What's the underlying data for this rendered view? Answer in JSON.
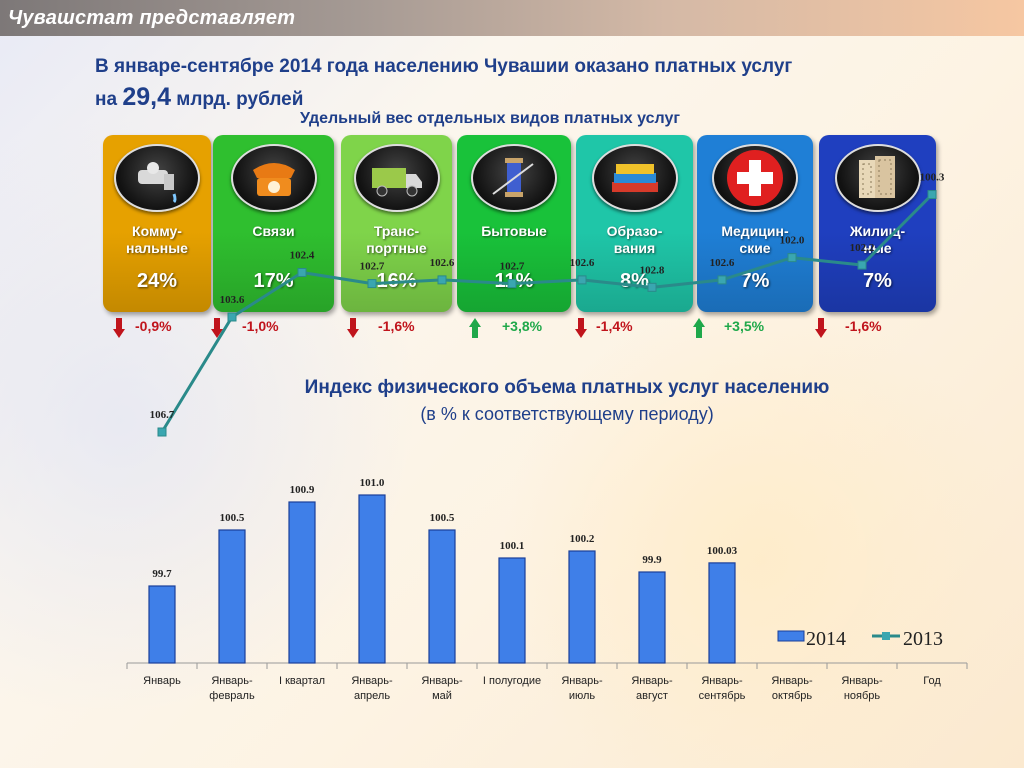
{
  "header": {
    "title": "Чувашстат представляет"
  },
  "headline": {
    "line1": "В  январе-сентябре 2014 года населению Чувашии  оказано платных услуг",
    "line2_prefix": "на ",
    "amount": "29,4",
    "line2_suffix": " млрд. рублей"
  },
  "subtitle": "Удельный вес отдельных видов платных услуг",
  "tiles": [
    {
      "label_1": "Комму-",
      "label_2": "нальные",
      "value": "24%",
      "change": "-0,9%",
      "direction": "down",
      "color": "#e6a100",
      "icon": "faucet-icon"
    },
    {
      "label_1": "Связи",
      "label_2": "",
      "value": "17%",
      "change": "-1,0%",
      "direction": "down",
      "color": "#2fbf2f",
      "icon": "telephone-icon"
    },
    {
      "label_1": "Транс-",
      "label_2": "портные",
      "value": "16%",
      "change": "-1,6%",
      "direction": "down",
      "color": "#7fd44a",
      "icon": "truck-icon"
    },
    {
      "label_1": "Бытовые",
      "label_2": "",
      "value": "11%",
      "change": "+3,8%",
      "direction": "up",
      "color": "#19c23a",
      "icon": "sewing-icon"
    },
    {
      "label_1": "Образо-",
      "label_2": "вания",
      "value": "8%",
      "change": "-1,4%",
      "direction": "down",
      "color": "#1fc6a8",
      "icon": "books-icon"
    },
    {
      "label_1": "Медицин-",
      "label_2": "ские",
      "value": "7%",
      "change": "+3,5%",
      "direction": "up",
      "color": "#1f7fd6",
      "icon": "medical-cross-icon"
    },
    {
      "label_1": "Жилищ-",
      "label_2": "ные",
      "value": "7%",
      "change": "-1,6%",
      "direction": "down",
      "color": "#1f3fbf",
      "icon": "apartment-icon"
    }
  ],
  "colors": {
    "down_arrow": "#c0141c",
    "up_arrow": "#1fa84a",
    "down_text": "#c0141c",
    "up_text": "#1fa84a",
    "bar": "#3f7fe8",
    "line": "#2a8a8a"
  },
  "chart_data": {
    "type": "bar",
    "title": "Индекс физического объема платных услуг населению",
    "subtitle": "(в % к соответствующему периоду)",
    "categories": [
      "Январь",
      "Январь-\nфевраль",
      "I квартал",
      "Январь-\nапрель",
      "Январь-\nмай",
      "I полугодие",
      "Январь-\nиюль",
      "Январь-\nавгуст",
      "Январь-\nсентябрь",
      "Январь-\nоктябрь",
      "Январь-\nноябрь",
      "Год"
    ],
    "series": [
      {
        "name": "2014",
        "type": "bar",
        "values": [
          99.7,
          100.5,
          100.9,
          101.0,
          100.5,
          100.1,
          100.2,
          99.9,
          100.03,
          null,
          null,
          null
        ],
        "labels": [
          "99.7",
          "100.5",
          "100.9",
          "101.0",
          "100.5",
          "100.1",
          "100.2",
          "99.9",
          "100.03",
          "",
          "",
          ""
        ]
      },
      {
        "name": "2013",
        "type": "line",
        "values": [
          106.7,
          103.6,
          102.4,
          102.7,
          102.6,
          102.7,
          102.6,
          102.8,
          102.6,
          102.0,
          102.2,
          100.3
        ],
        "labels": [
          "106.7",
          "103.6",
          "102.4",
          "102.7",
          "102.6",
          "102.7",
          "102.6",
          "102.8",
          "102.6",
          "102.0",
          "102.2",
          "100.3"
        ]
      }
    ],
    "legend": "bottom-right"
  }
}
